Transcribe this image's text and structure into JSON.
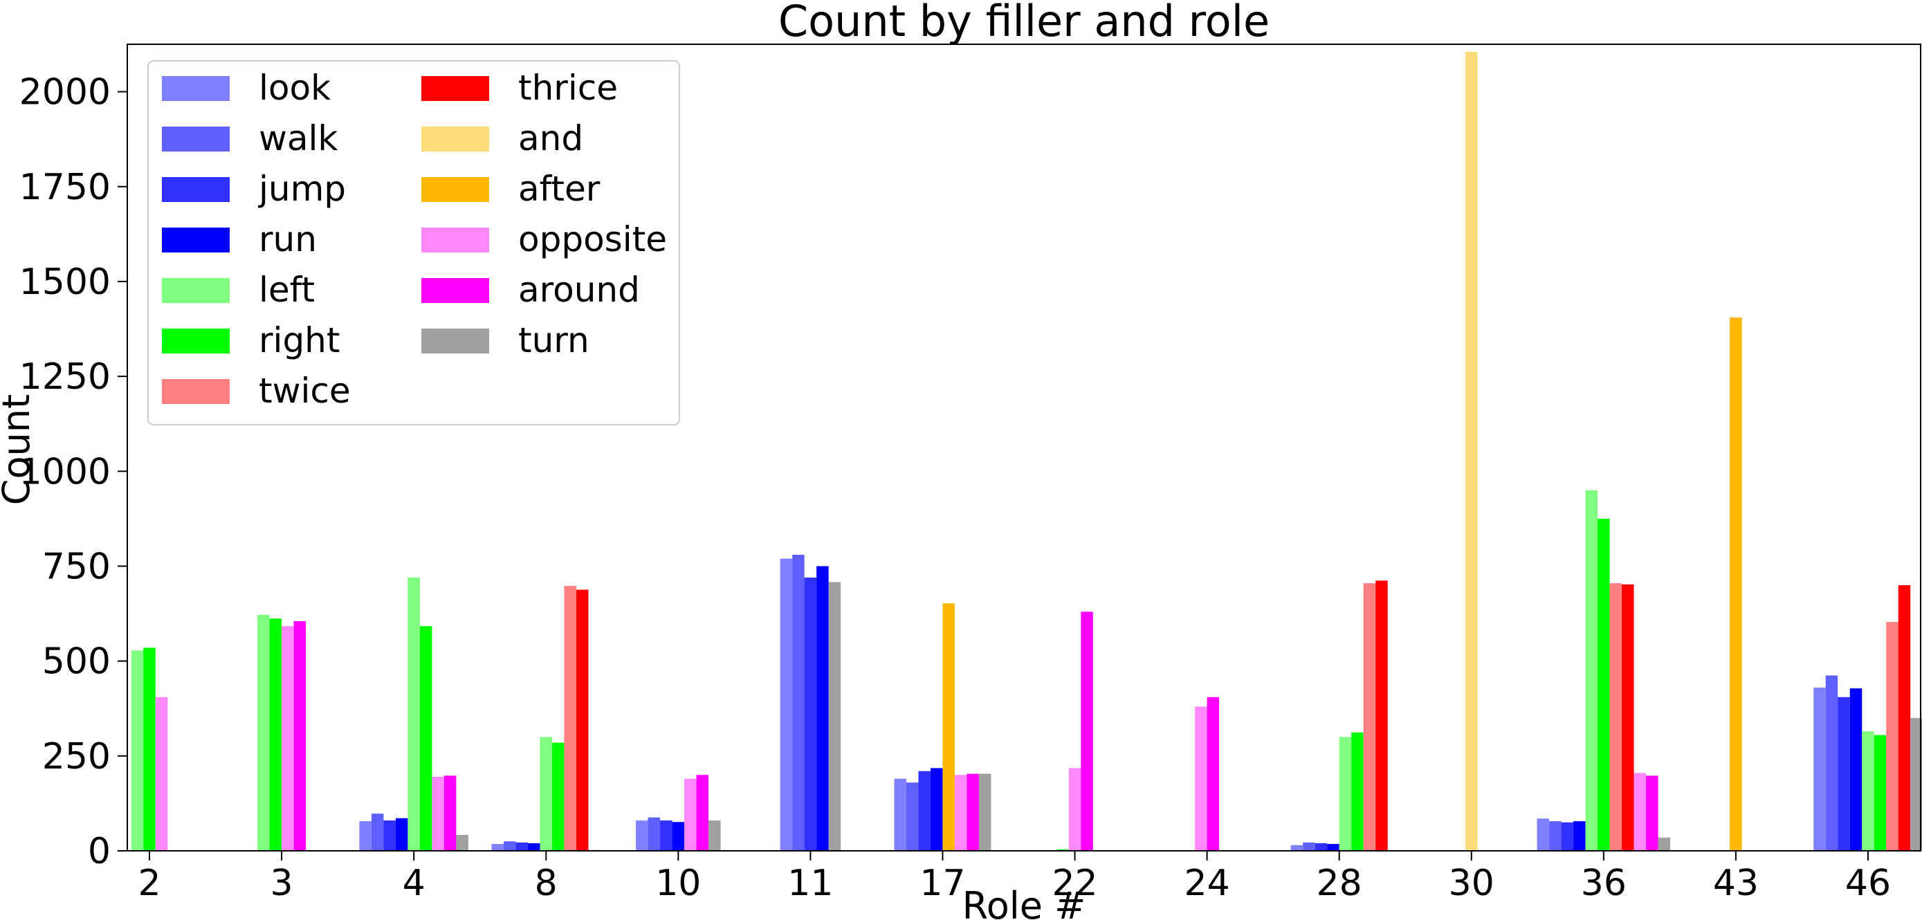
{
  "chart_data": {
    "type": "bar",
    "title": "Count by filler and role",
    "xlabel": "Role #",
    "ylabel": "Count",
    "ylim": [
      0,
      2125
    ],
    "yticks": [
      0,
      250,
      500,
      750,
      1000,
      1250,
      1500,
      1750,
      2000
    ],
    "categories": [
      "2",
      "3",
      "4",
      "8",
      "10",
      "11",
      "17",
      "22",
      "24",
      "28",
      "30",
      "36",
      "43",
      "46"
    ],
    "legend_position": "top-left",
    "legend_columns": 2,
    "series": [
      {
        "name": "look",
        "color": "#8080ff",
        "values": [
          0,
          0,
          78,
          18,
          80,
          770,
          190,
          0,
          0,
          15,
          0,
          85,
          0,
          430
        ]
      },
      {
        "name": "walk",
        "color": "#6060ff",
        "values": [
          0,
          0,
          98,
          25,
          88,
          780,
          180,
          0,
          0,
          22,
          0,
          78,
          0,
          462
        ]
      },
      {
        "name": "jump",
        "color": "#3030ff",
        "values": [
          0,
          0,
          80,
          22,
          80,
          720,
          210,
          0,
          0,
          20,
          0,
          75,
          0,
          405
        ]
      },
      {
        "name": "run",
        "color": "#0000ff",
        "values": [
          0,
          0,
          86,
          20,
          76,
          750,
          218,
          0,
          0,
          18,
          0,
          78,
          0,
          428
        ]
      },
      {
        "name": "left",
        "color": "#80ff80",
        "values": [
          528,
          622,
          720,
          300,
          0,
          0,
          0,
          0,
          0,
          300,
          0,
          950,
          0,
          315
        ]
      },
      {
        "name": "right",
        "color": "#00ff00",
        "values": [
          535,
          612,
          592,
          285,
          0,
          0,
          0,
          4,
          0,
          312,
          0,
          875,
          0,
          305
        ]
      },
      {
        "name": "twice",
        "color": "#ff8080",
        "values": [
          0,
          0,
          0,
          698,
          0,
          0,
          0,
          0,
          0,
          705,
          0,
          705,
          0,
          603
        ]
      },
      {
        "name": "thrice",
        "color": "#ff0000",
        "values": [
          0,
          0,
          0,
          688,
          0,
          0,
          0,
          0,
          0,
          712,
          0,
          702,
          0,
          700
        ]
      },
      {
        "name": "and",
        "color": "#ffdc7a",
        "values": [
          0,
          0,
          0,
          0,
          0,
          0,
          0,
          0,
          0,
          0,
          2105,
          0,
          0,
          0
        ]
      },
      {
        "name": "after",
        "color": "#ffb800",
        "values": [
          0,
          0,
          0,
          0,
          0,
          0,
          652,
          0,
          0,
          0,
          0,
          0,
          1405,
          0
        ]
      },
      {
        "name": "opposite",
        "color": "#ff88ff",
        "values": [
          405,
          592,
          195,
          0,
          190,
          0,
          200,
          218,
          380,
          0,
          0,
          205,
          0,
          0
        ]
      },
      {
        "name": "around",
        "color": "#ff00ff",
        "values": [
          0,
          605,
          198,
          2,
          200,
          0,
          203,
          630,
          405,
          0,
          0,
          198,
          0,
          0
        ]
      },
      {
        "name": "turn",
        "color": "#a0a0a0",
        "values": [
          0,
          0,
          42,
          0,
          80,
          708,
          203,
          0,
          0,
          0,
          0,
          35,
          0,
          350
        ]
      }
    ]
  }
}
